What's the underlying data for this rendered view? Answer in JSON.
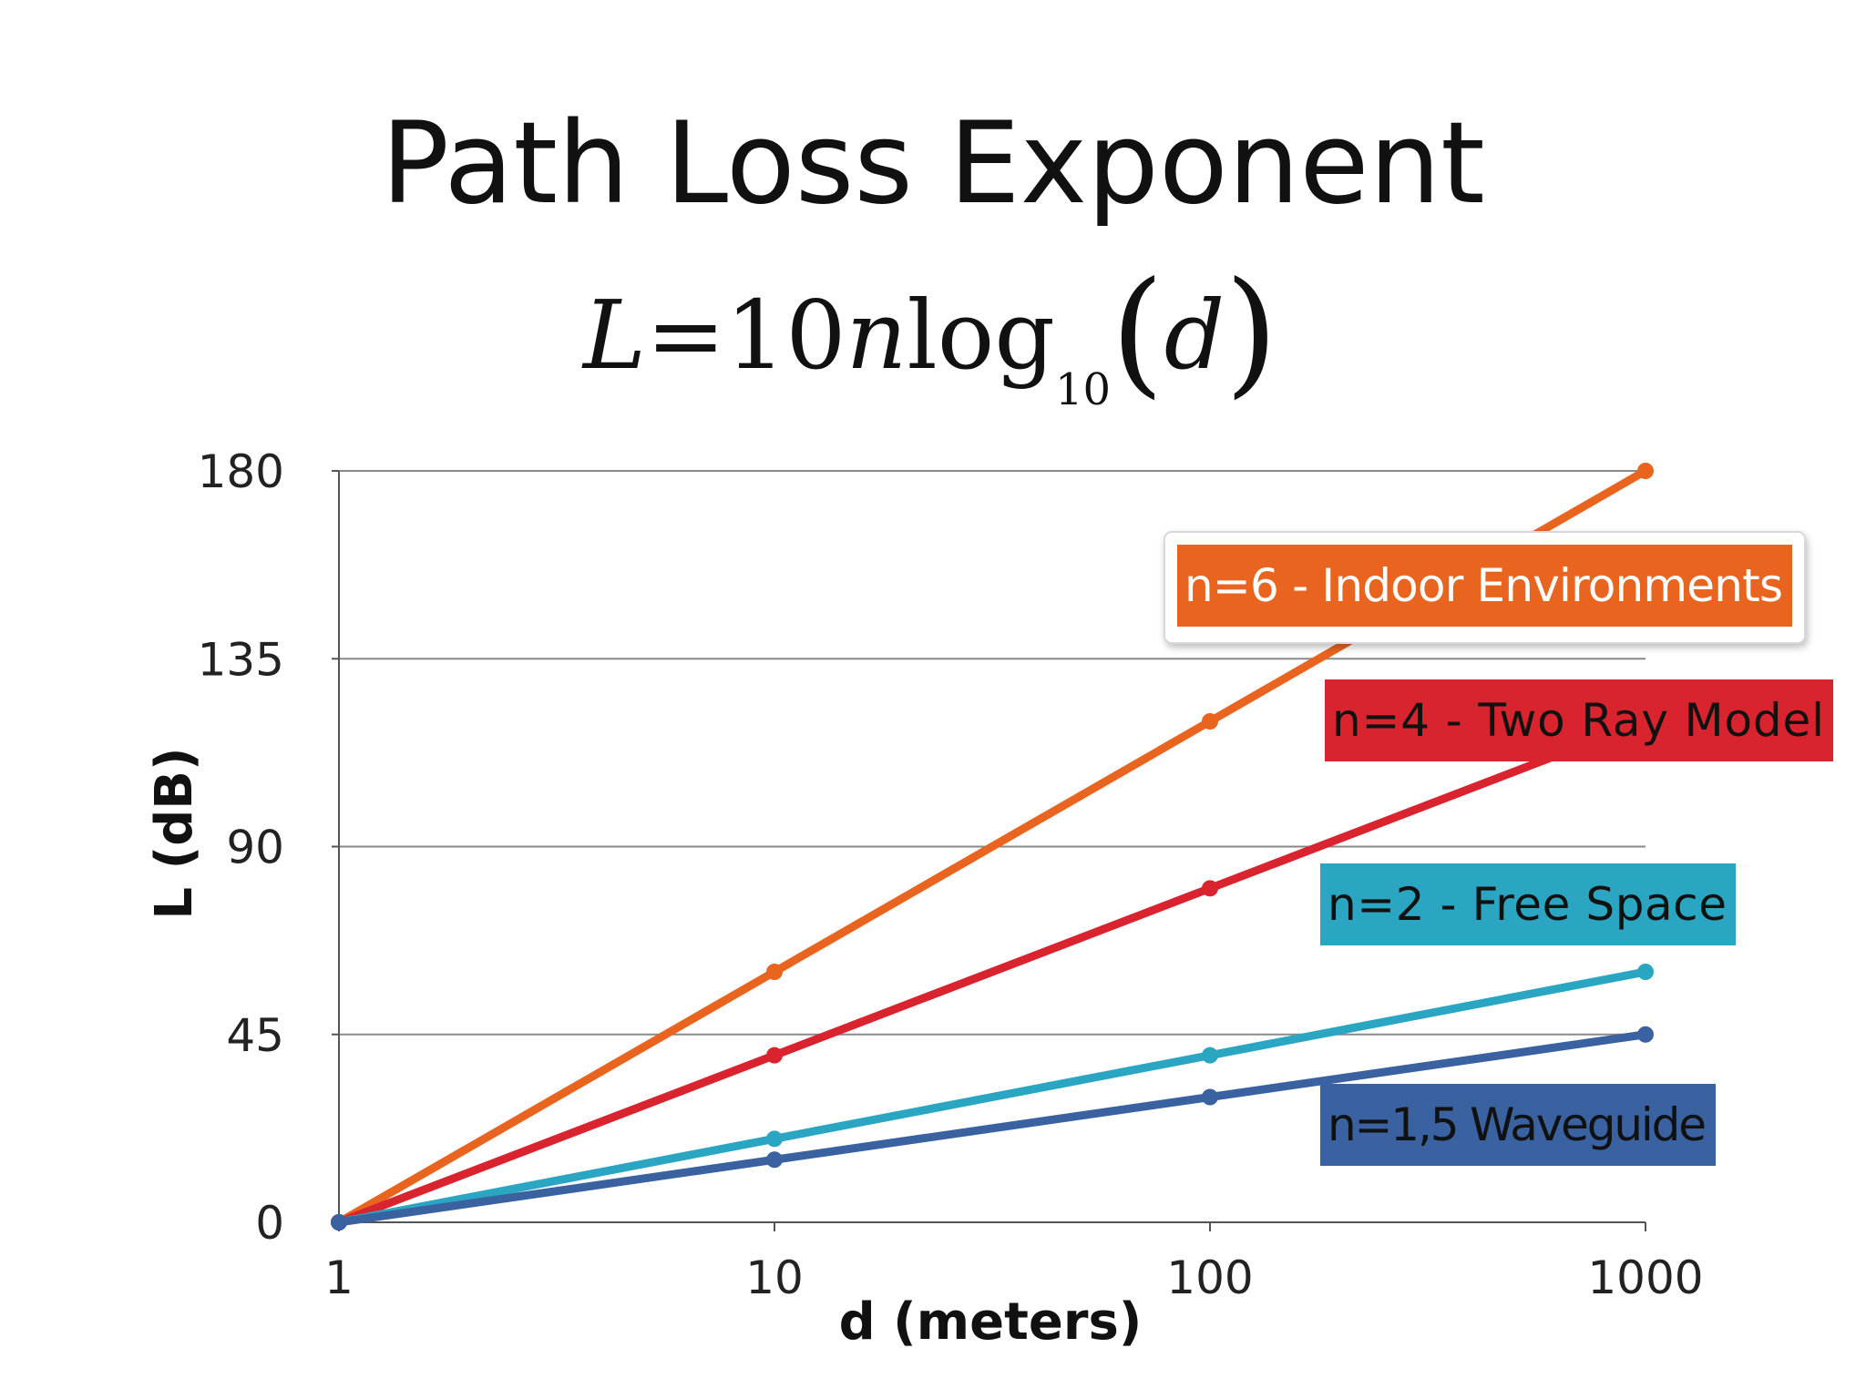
{
  "page": {
    "title": "Path Loss Exponent"
  },
  "formula": {
    "lhs": "L",
    "equals": "=",
    "coef": "10",
    "n": "n",
    "log": "log",
    "base": "10",
    "open": "(",
    "arg": "d",
    "close": ")"
  },
  "chart_data": {
    "type": "line",
    "title": "",
    "xlabel": "d (meters)",
    "ylabel": "L (dB)",
    "x_scale": "log",
    "x": [
      1,
      10,
      100,
      1000
    ],
    "x_tick_labels": [
      "1",
      "10",
      "100",
      "1000"
    ],
    "ylim": [
      0,
      180
    ],
    "y_ticks": [
      0,
      45,
      90,
      135,
      180
    ],
    "grid": true,
    "series": [
      {
        "name": "n=6 - Indoor Environments",
        "values": [
          0,
          60,
          120,
          180
        ],
        "color": "#e8641f",
        "label_bg": "#e8641f",
        "label_fg": "#ffffff"
      },
      {
        "name": "n=4 - Two Ray Model",
        "values": [
          0,
          40,
          80,
          120
        ],
        "color": "#d9242f",
        "label_bg": "#d9242f",
        "label_fg": "#111111"
      },
      {
        "name": "n=2 - Free Space",
        "values": [
          0,
          20,
          40,
          60
        ],
        "color": "#2ba6c2",
        "label_bg": "#2ba6c2",
        "label_fg": "#111111"
      },
      {
        "name": "n=1,5 Waveguide",
        "values": [
          0,
          15,
          30,
          45
        ],
        "color": "#3a62a0",
        "label_bg": "#3a62a0",
        "label_fg": "#111111"
      }
    ]
  }
}
